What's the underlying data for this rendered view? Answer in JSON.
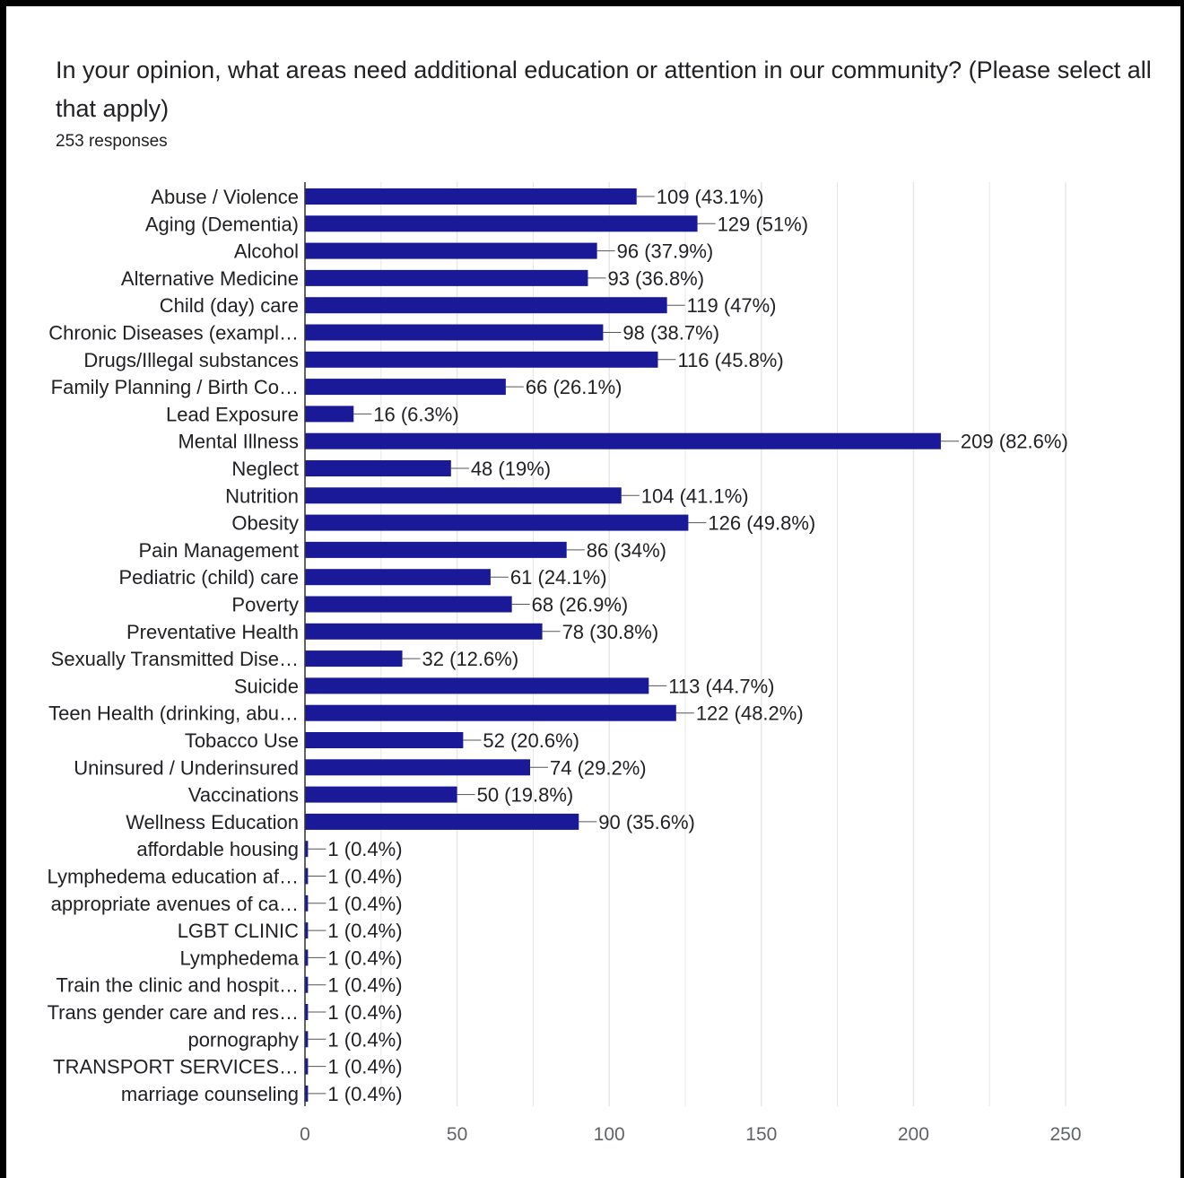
{
  "question": {
    "title": "In your opinion, what areas need additional education or attention in our community? (Please select all that apply)",
    "responses": "253 responses"
  },
  "colors": {
    "bar": "#1a1a99",
    "grid": "#e6e6e6",
    "axis": "#333333",
    "text": "#202124",
    "tick": "#5f6368"
  },
  "chart_data": {
    "type": "bar",
    "orientation": "horizontal",
    "xlim": [
      0,
      250
    ],
    "xticks": [
      0,
      50,
      100,
      150,
      200,
      250
    ],
    "grid": true,
    "categories": [
      "Abuse / Violence",
      "Aging (Dementia)",
      "Alcohol",
      "Alternative Medicine",
      "Child (day) care",
      "Chronic Diseases (exampl…",
      "Drugs/Illegal substances",
      "Family Planning / Birth Co…",
      "Lead Exposure",
      "Mental Illness",
      "Neglect",
      "Nutrition",
      "Obesity",
      "Pain Management",
      "Pediatric (child) care",
      "Poverty",
      "Preventative Health",
      "Sexually Transmitted Dise…",
      "Suicide",
      "Teen Health (drinking, abu…",
      "Tobacco Use",
      "Uninsured / Underinsured",
      "Vaccinations",
      "Wellness Education",
      "affordable housing",
      "Lymphedema education af…",
      "appropriate avenues of ca…",
      "LGBT CLINIC",
      "Lymphedema",
      "Train the clinic and hospit…",
      "Trans gender care and res…",
      "pornography",
      "TRANSPORT SERVICES…",
      "marriage counseling"
    ],
    "values": [
      109,
      129,
      96,
      93,
      119,
      98,
      116,
      66,
      16,
      209,
      48,
      104,
      126,
      86,
      61,
      68,
      78,
      32,
      113,
      122,
      52,
      74,
      50,
      90,
      1,
      1,
      1,
      1,
      1,
      1,
      1,
      1,
      1,
      1
    ],
    "labels": [
      "109 (43.1%)",
      "129 (51%)",
      "96 (37.9%)",
      "93 (36.8%)",
      "119 (47%)",
      "98 (38.7%)",
      "116 (45.8%)",
      "66 (26.1%)",
      "16 (6.3%)",
      "209 (82.6%)",
      "48 (19%)",
      "104 (41.1%)",
      "126 (49.8%)",
      "86 (34%)",
      "61 (24.1%)",
      "68 (26.9%)",
      "78 (30.8%)",
      "32 (12.6%)",
      "113 (44.7%)",
      "122 (48.2%)",
      "52 (20.6%)",
      "74 (29.2%)",
      "50 (19.8%)",
      "90 (35.6%)",
      "1 (0.4%)",
      "1 (0.4%)",
      "1 (0.4%)",
      "1 (0.4%)",
      "1 (0.4%)",
      "1 (0.4%)",
      "1 (0.4%)",
      "1 (0.4%)",
      "1 (0.4%)",
      "1 (0.4%)"
    ]
  }
}
